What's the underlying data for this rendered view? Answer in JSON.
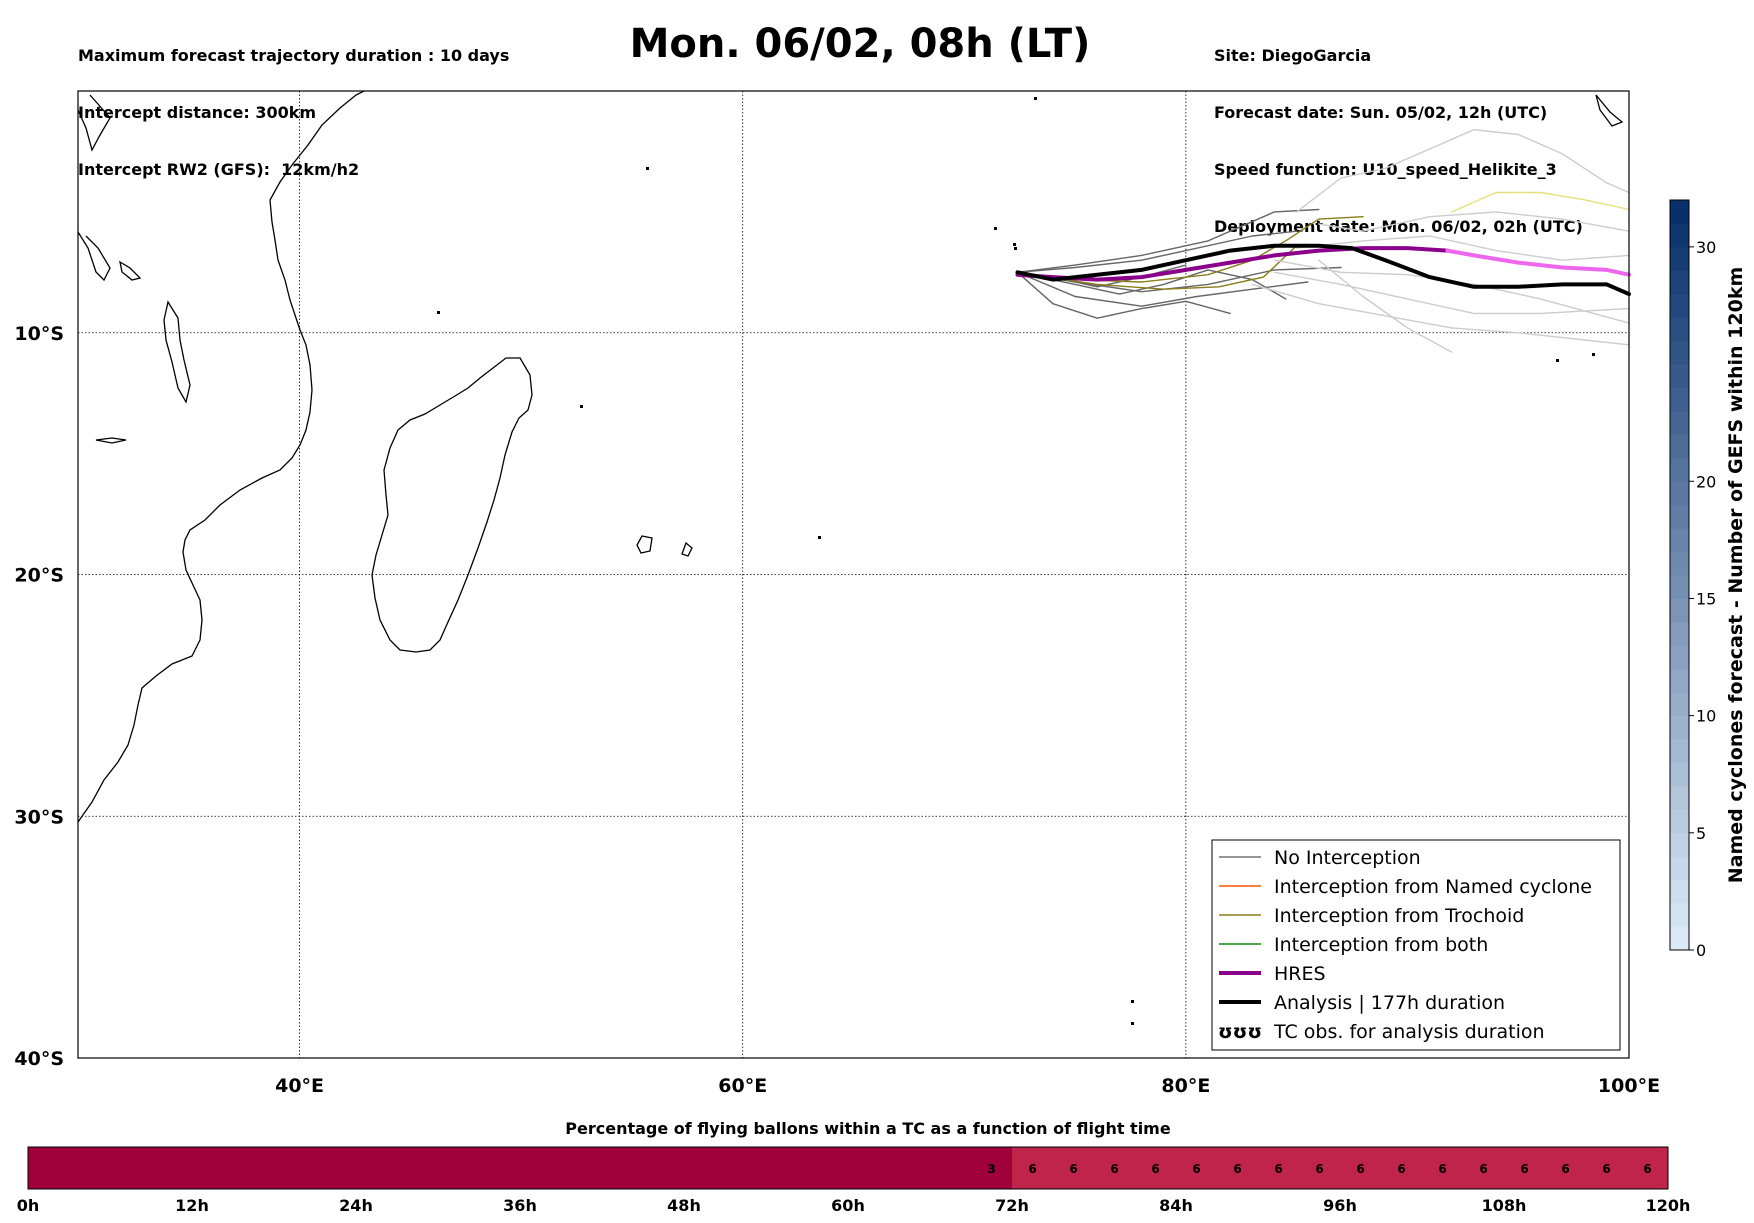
{
  "header": {
    "left": [
      "Maximum forecast trajectory duration : 10 days",
      "Intercept distance: 300km",
      "Intercept RW2 (GFS):  12km/h2"
    ],
    "right": [
      "Site: DiegoGarcia",
      "Forecast date: Sun. 05/02, 12h (UTC)",
      "Speed function: U10_speed_Helikite_3",
      "Deployment date: Mon. 06/02, 02h (UTC)"
    ],
    "title": "Mon. 06/02, 08h (LT)"
  },
  "map": {
    "lon_range": [
      30,
      100
    ],
    "lat_range": [
      -40,
      0
    ],
    "lon_ticks": [
      {
        "v": 40,
        "label": "40°E"
      },
      {
        "v": 60,
        "label": "60°E"
      },
      {
        "v": 80,
        "label": "80°E"
      },
      {
        "v": 100,
        "label": "100°E"
      }
    ],
    "lat_ticks": [
      {
        "v": -10,
        "label": "10°S"
      },
      {
        "v": -20,
        "label": "20°S"
      },
      {
        "v": -30,
        "label": "30°S"
      },
      {
        "v": -40,
        "label": "40°S"
      }
    ]
  },
  "legend": {
    "items": [
      {
        "label": "No Interception",
        "color": "#777777",
        "width": 1.5
      },
      {
        "label": "Interception from Named cyclone",
        "color": "#ff5500",
        "width": 1.5
      },
      {
        "label": "Interception from Trochoid",
        "color": "#8a7d1a",
        "width": 1.5
      },
      {
        "label": "Interception from both",
        "color": "#118811",
        "width": 1.5
      },
      {
        "label": "HRES",
        "color": "#8b008b",
        "width": 4
      },
      {
        "label": "Analysis | 177h duration",
        "color": "#000000",
        "width": 4
      },
      {
        "label": "TC obs. for analysis duration",
        "color": "#000000",
        "width": 0,
        "symbol": "ʊʊʊ"
      }
    ]
  },
  "colorbar": {
    "title": "Named cyclones forecast - Number of GEFS within 120km",
    "range": [
      0,
      32
    ],
    "ticks": [
      0,
      5,
      10,
      15,
      20,
      30
    ],
    "color_low": "#dbe9f6",
    "color_high": "#08306b"
  },
  "timebar": {
    "title": "Percentage of flying ballons within a TC as a function of flight time",
    "tick_labels": [
      "0h",
      "12h",
      "24h",
      "36h",
      "48h",
      "60h",
      "72h",
      "84h",
      "96h",
      "108h",
      "120h"
    ],
    "hours_max": 120,
    "color_zero": "#a0003a",
    "color_nonzero": "#c0244a",
    "cells_start_hour": 69,
    "cell_hours": 3,
    "cell_values": [
      3,
      6,
      6,
      6,
      6,
      6,
      6,
      6,
      6,
      6,
      6,
      6,
      6,
      6,
      6,
      6,
      6
    ]
  },
  "chart_data": {
    "type": "line",
    "title": "Mon. 06/02, 08h (LT)",
    "xlabel": "",
    "ylabel": "",
    "x_unit": "longitude °E",
    "y_unit": "latitude (negative = S)",
    "xlim": [
      30,
      100
    ],
    "ylim": [
      -40,
      0
    ],
    "grid": true,
    "legend_position": "bottom-right",
    "series": [
      {
        "name": "HRES",
        "color": "#8b008b",
        "x": [
          72.4,
          74,
          76,
          78,
          80,
          82,
          84,
          86,
          88,
          90,
          91.8
        ],
        "y": [
          -7.6,
          -7.7,
          -7.8,
          -7.7,
          -7.4,
          -7.1,
          -6.8,
          -6.6,
          -6.5,
          -6.5,
          -6.6
        ]
      },
      {
        "name": "HRES",
        "color": "#ee66ee",
        "x": [
          91.8,
          93,
          95,
          97,
          99,
          100
        ],
        "y": [
          -6.6,
          -6.8,
          -7.1,
          -7.3,
          -7.4,
          -7.6
        ]
      },
      {
        "name": "Analysis | 177h duration",
        "color": "#000000",
        "x": [
          72.4,
          74,
          76,
          78,
          80,
          82,
          84,
          86,
          87.5,
          89,
          91,
          93,
          95,
          97,
          99,
          100
        ],
        "y": [
          -7.5,
          -7.8,
          -7.6,
          -7.4,
          -7.0,
          -6.6,
          -6.4,
          -6.4,
          -6.5,
          -7.0,
          -7.7,
          -8.1,
          -8.1,
          -8.0,
          -8.0,
          -8.4
        ]
      },
      {
        "name": "",
        "color": "#666666",
        "x": [
          72.4,
          75,
          78,
          81,
          84,
          87
        ],
        "y": [
          -7.5,
          -7.9,
          -8.3,
          -8.0,
          -7.4,
          -7.3
        ]
      },
      {
        "name": "",
        "color": "#666666",
        "x": [
          72.4,
          75,
          78,
          80.5,
          83,
          85.5
        ],
        "y": [
          -7.5,
          -8.5,
          -8.9,
          -8.5,
          -8.2,
          -7.9
        ]
      },
      {
        "name": "",
        "color": "#666666",
        "x": [
          72.4,
          75,
          78,
          81,
          84,
          86
        ],
        "y": [
          -7.5,
          -7.2,
          -6.8,
          -6.2,
          -5.0,
          -4.9
        ]
      },
      {
        "name": "",
        "color": "#666666",
        "x": [
          72.4,
          74,
          76,
          78,
          80,
          82
        ],
        "y": [
          -7.5,
          -8.8,
          -9.4,
          -9.0,
          -8.7,
          -9.2
        ]
      },
      {
        "name": "",
        "color": "#666666",
        "x": [
          72.4,
          75,
          78,
          80,
          83,
          85
        ],
        "y": [
          -7.5,
          -7.3,
          -7.0,
          -6.6,
          -6.0,
          -5.8
        ]
      },
      {
        "name": "",
        "color": "#666666",
        "x": [
          72.4,
          75,
          77,
          79,
          81,
          83,
          84.5
        ],
        "y": [
          -7.5,
          -8.0,
          -8.4,
          -8.0,
          -7.4,
          -7.8,
          -8.6
        ]
      },
      {
        "name": "",
        "color": "#666666",
        "x": [
          72.4,
          74,
          76,
          78,
          80
        ],
        "y": [
          -7.5,
          -7.7,
          -8.1,
          -7.7,
          -7.2
        ]
      },
      {
        "name": "",
        "color": "#8a7d1a",
        "x": [
          72.4,
          75,
          78,
          81,
          83,
          84.5,
          86,
          88
        ],
        "y": [
          -7.5,
          -7.8,
          -7.9,
          -7.6,
          -7.0,
          -6.2,
          -5.3,
          -5.2
        ]
      },
      {
        "name": "",
        "color": "#8a7d1a",
        "x": [
          72.4,
          76,
          79,
          81.5,
          83.5,
          85
        ],
        "y": [
          -7.5,
          -8.0,
          -8.2,
          -8.1,
          -7.7,
          -6.4
        ]
      },
      {
        "name": "",
        "color": "#cccccc",
        "x": [
          85,
          87,
          89,
          91,
          93,
          95,
          97,
          99,
          100
        ],
        "y": [
          -5.0,
          -3.6,
          -3.2,
          -2.4,
          -1.6,
          -1.8,
          -2.6,
          -3.8,
          -4.2
        ]
      },
      {
        "name": "",
        "color": "#cccccc",
        "x": [
          86,
          88,
          91,
          94,
          97,
          100
        ],
        "y": [
          -5.5,
          -5.8,
          -5.2,
          -5.0,
          -5.3,
          -5.8
        ]
      },
      {
        "name": "",
        "color": "#cccccc",
        "x": [
          84,
          87,
          90,
          93,
          96,
          100
        ],
        "y": [
          -7.5,
          -8.0,
          -8.6,
          -9.2,
          -9.2,
          -9.0
        ]
      },
      {
        "name": "",
        "color": "#cccccc",
        "x": [
          83,
          86,
          89,
          92,
          95,
          98,
          100
        ],
        "y": [
          -8.0,
          -8.8,
          -9.3,
          -9.8,
          -10.0,
          -10.3,
          -10.5
        ]
      },
      {
        "name": "",
        "color": "#cccccc",
        "x": [
          85,
          88,
          91,
          94,
          97,
          100
        ],
        "y": [
          -6.5,
          -6.2,
          -6.0,
          -6.6,
          -7.0,
          -6.8
        ]
      },
      {
        "name": "",
        "color": "#cccccc",
        "x": [
          84,
          87,
          90,
          93,
          96,
          100
        ],
        "y": [
          -7.0,
          -7.5,
          -7.6,
          -8.0,
          -8.6,
          -9.6
        ]
      },
      {
        "name": "",
        "color": "#cccccc",
        "x": [
          86,
          88,
          90,
          92
        ],
        "y": [
          -7.0,
          -8.5,
          -9.8,
          -10.8
        ]
      },
      {
        "name": "",
        "color": "#e6e07a",
        "x": [
          92,
          94,
          96,
          98,
          100
        ],
        "y": [
          -5.0,
          -4.2,
          -4.2,
          -4.5,
          -4.9
        ]
      }
    ]
  }
}
